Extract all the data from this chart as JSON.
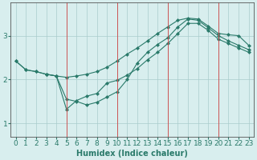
{
  "title": "",
  "xlabel": "Humidex (Indice chaleur)",
  "ylabel": "",
  "bg_color": "#d8eeee",
  "line_color": "#2a7a6a",
  "marker_style": "D",
  "marker_size": 2,
  "xlim": [
    -0.5,
    23.5
  ],
  "ylim": [
    0.7,
    3.75
  ],
  "yticks": [
    1,
    2,
    3
  ],
  "xticks": [
    0,
    1,
    2,
    3,
    4,
    5,
    6,
    7,
    8,
    9,
    10,
    11,
    12,
    13,
    14,
    15,
    16,
    17,
    18,
    19,
    20,
    21,
    22,
    23
  ],
  "line1_x": [
    0,
    1,
    2,
    3,
    4,
    5,
    6,
    7,
    8,
    9,
    10,
    11,
    12,
    13,
    14,
    15,
    16,
    17,
    18,
    19,
    20,
    21,
    22,
    23
  ],
  "line1_y": [
    2.42,
    2.22,
    2.18,
    2.12,
    2.08,
    2.05,
    2.08,
    2.12,
    2.18,
    2.28,
    2.42,
    2.58,
    2.72,
    2.88,
    3.05,
    3.2,
    3.35,
    3.4,
    3.38,
    3.22,
    3.05,
    3.02,
    3.0,
    2.78
  ],
  "line2_x": [
    0,
    1,
    2,
    3,
    4,
    5,
    6,
    7,
    8,
    9,
    10,
    11,
    12,
    13,
    14,
    15,
    16,
    17,
    18,
    19,
    20,
    21,
    22,
    23
  ],
  "line2_y": [
    2.42,
    2.22,
    2.18,
    2.12,
    2.08,
    1.55,
    1.5,
    1.42,
    1.48,
    1.6,
    1.72,
    2.0,
    2.38,
    2.62,
    2.8,
    2.95,
    3.2,
    3.38,
    3.35,
    3.18,
    3.0,
    2.88,
    2.78,
    2.68
  ],
  "line3_x": [
    3,
    4,
    5,
    6,
    7,
    8,
    9,
    10,
    11,
    12,
    13,
    14,
    15,
    16,
    17,
    18,
    19,
    20,
    21,
    22,
    23
  ],
  "line3_y": [
    2.12,
    2.08,
    1.32,
    1.52,
    1.62,
    1.68,
    1.92,
    1.98,
    2.1,
    2.25,
    2.45,
    2.62,
    2.82,
    3.05,
    3.28,
    3.28,
    3.12,
    2.92,
    2.82,
    2.72,
    2.62
  ],
  "grid_color": "#aacccc",
  "red_vlines": [
    5,
    10,
    15,
    20
  ],
  "xlabel_fontsize": 7,
  "tick_fontsize": 6.5
}
